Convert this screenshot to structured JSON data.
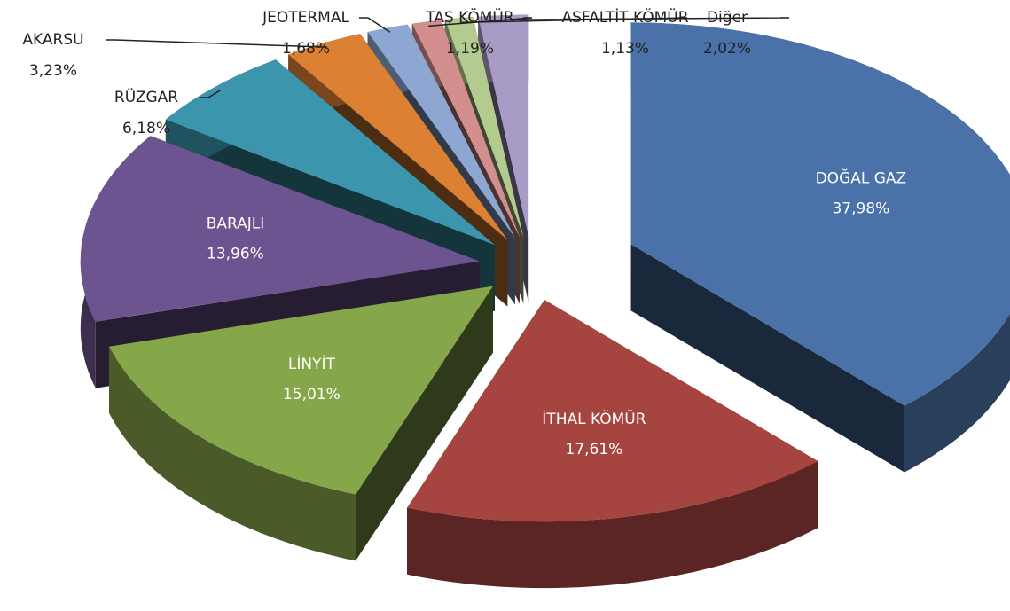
{
  "chart_data": {
    "type": "pie3d",
    "categories": [
      "DOĞAL GAZ",
      "İTHAL KÖMÜR",
      "LİNYİT",
      "BARAJLI",
      "RÜZGAR",
      "AKARSU",
      "JEOTERMAL",
      "TAŞ KÖMÜR",
      "ASFALTİT KÖMÜR",
      "Diğer"
    ],
    "values": [
      37.98,
      17.61,
      15.01,
      13.96,
      6.18,
      3.23,
      1.68,
      1.19,
      1.13,
      2.02
    ],
    "value_labels": [
      "37,98%",
      "17,61%",
      "15,01%",
      "13,96%",
      "6,18%",
      "3,23%",
      "1,68%",
      "1,19%",
      "1,13%",
      "2,02%"
    ],
    "colors": [
      "#4a72a8",
      "#a64440",
      "#86a64a",
      "#6c5490",
      "#3b96ad",
      "#dc8034",
      "#8ea7d2",
      "#d38f8d",
      "#b3cb8e",
      "#a89bc6"
    ]
  }
}
